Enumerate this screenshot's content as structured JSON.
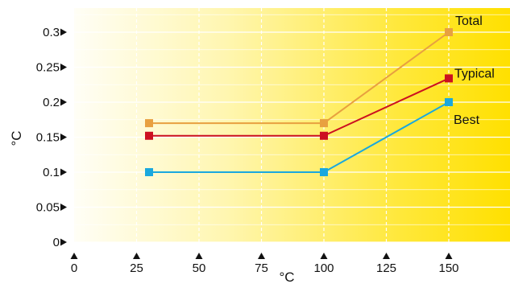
{
  "chart_data": {
    "type": "line",
    "xlabel": "°C",
    "ylabel": "°C",
    "xlim": [
      0,
      170
    ],
    "ylim": [
      0,
      0.33
    ],
    "x_ticks": [
      "0",
      "25",
      "50",
      "75",
      "100",
      "125",
      "150"
    ],
    "x_tick_values": [
      0,
      25,
      50,
      75,
      100,
      125,
      150
    ],
    "y_ticks": [
      "0",
      "0.05",
      "0.1",
      "0.15",
      "0.2",
      "0.25",
      "0.3"
    ],
    "y_tick_values": [
      0,
      0.05,
      0.1,
      0.15,
      0.2,
      0.25,
      0.3
    ],
    "grid": true,
    "background": "gradient-white-to-yellow",
    "series": [
      {
        "name": "Total",
        "color": "#e8a040",
        "x": [
          30,
          100,
          150
        ],
        "y": [
          0.17,
          0.17,
          0.3
        ]
      },
      {
        "name": "Typical",
        "color": "#cc1020",
        "x": [
          30,
          100,
          150
        ],
        "y": [
          0.152,
          0.152,
          0.234
        ]
      },
      {
        "name": "Best",
        "color": "#1aa8de",
        "x": [
          30,
          100,
          150
        ],
        "y": [
          0.1,
          0.1,
          0.2
        ]
      }
    ]
  }
}
